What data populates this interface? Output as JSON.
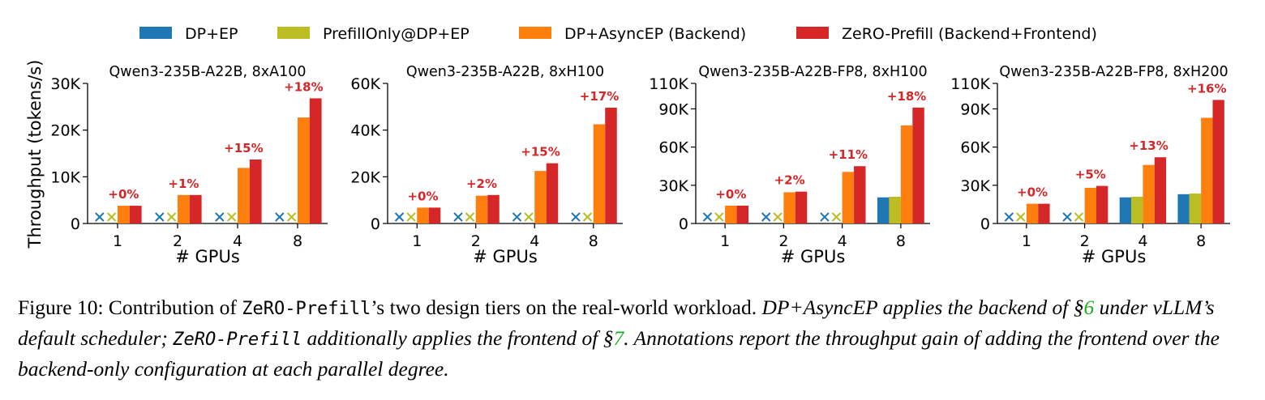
{
  "legend": [
    {
      "label": "DP+EP",
      "color": "#1f77b4",
      "key": "dp_ep"
    },
    {
      "label": "PrefillOnly@DP+EP",
      "color": "#bcbd22",
      "key": "prefill_only"
    },
    {
      "label": "DP+AsyncEP (Backend)",
      "color": "#ff7f0e",
      "key": "async_ep"
    },
    {
      "label": "ZeRO-Prefill (Backend+Frontend)",
      "color": "#d62728",
      "key": "zero_prefill"
    }
  ],
  "caption": {
    "prefix": "Figure 10: Contribution of ",
    "system_name": "ZeRO-Prefill",
    "middle": "’s two design tiers on the real-world workload. ",
    "italic_1": "DP+AsyncEP applies the backend of §",
    "ref_1": "6",
    "italic_2": " under vLLM’s default scheduler; ",
    "system_name_2": "ZeRO-Prefill",
    "italic_3": " additionally applies the frontend of §",
    "ref_2": "7",
    "italic_4": ". Annotations report the throughput gain of adding the frontend over the backend-only configuration at each parallel degree."
  },
  "chart_data": [
    {
      "type": "bar",
      "title": "Qwen3-235B-A22B, 8xA100",
      "xlabel": "# GPUs",
      "ylabel": "Throughput (tokens/s)",
      "categories": [
        "1",
        "2",
        "4",
        "8"
      ],
      "ylim": [
        0,
        30000
      ],
      "yticks": [
        0,
        10000,
        20000,
        30000
      ],
      "ytick_labels": [
        "0",
        "10K",
        "20K",
        "30K"
      ],
      "series": [
        {
          "name": "DP+EP",
          "values": [
            null,
            null,
            null,
            null
          ]
        },
        {
          "name": "PrefillOnly@DP+EP",
          "values": [
            null,
            null,
            null,
            null
          ]
        },
        {
          "name": "DP+AsyncEP (Backend)",
          "values": [
            3800,
            6100,
            11900,
            22700
          ]
        },
        {
          "name": "ZeRO-Prefill (Backend+Frontend)",
          "values": [
            3800,
            6100,
            13700,
            26800
          ]
        }
      ],
      "annotations": [
        "+0%",
        "+1%",
        "+15%",
        "+18%"
      ]
    },
    {
      "type": "bar",
      "title": "Qwen3-235B-A22B, 8xH100",
      "xlabel": "# GPUs",
      "ylabel": "",
      "categories": [
        "1",
        "2",
        "4",
        "8"
      ],
      "ylim": [
        0,
        60000
      ],
      "yticks": [
        0,
        20000,
        40000,
        60000
      ],
      "ytick_labels": [
        "0",
        "20K",
        "40K",
        "60K"
      ],
      "series": [
        {
          "name": "DP+EP",
          "values": [
            null,
            null,
            null,
            null
          ]
        },
        {
          "name": "PrefillOnly@DP+EP",
          "values": [
            null,
            null,
            null,
            null
          ]
        },
        {
          "name": "DP+AsyncEP (Backend)",
          "values": [
            6800,
            11900,
            22500,
            42500
          ]
        },
        {
          "name": "ZeRO-Prefill (Backend+Frontend)",
          "values": [
            6800,
            12200,
            25800,
            49600
          ]
        }
      ],
      "annotations": [
        "+0%",
        "+2%",
        "+15%",
        "+17%"
      ]
    },
    {
      "type": "bar",
      "title": "Qwen3-235B-A22B-FP8, 8xH100",
      "xlabel": "# GPUs",
      "ylabel": "",
      "categories": [
        "1",
        "2",
        "4",
        "8"
      ],
      "ylim": [
        0,
        110000
      ],
      "yticks": [
        0,
        30000,
        60000,
        90000,
        110000
      ],
      "ytick_labels": [
        "0",
        "30K",
        "60K",
        "90K",
        "110K"
      ],
      "series": [
        {
          "name": "DP+EP",
          "values": [
            null,
            null,
            null,
            20500
          ]
        },
        {
          "name": "PrefillOnly@DP+EP",
          "values": [
            null,
            null,
            null,
            21000
          ]
        },
        {
          "name": "DP+AsyncEP (Backend)",
          "values": [
            14000,
            24500,
            40500,
            77000
          ]
        },
        {
          "name": "ZeRO-Prefill (Backend+Frontend)",
          "values": [
            14000,
            25000,
            45000,
            91000
          ]
        }
      ],
      "annotations": [
        "+0%",
        "+2%",
        "+11%",
        "+18%"
      ]
    },
    {
      "type": "bar",
      "title": "Qwen3-235B-A22B-FP8, 8xH200",
      "xlabel": "# GPUs",
      "ylabel": "",
      "categories": [
        "1",
        "2",
        "4",
        "8"
      ],
      "ylim": [
        0,
        110000
      ],
      "yticks": [
        0,
        30000,
        60000,
        90000,
        110000
      ],
      "ytick_labels": [
        "0",
        "30K",
        "60K",
        "90K",
        "110K"
      ],
      "series": [
        {
          "name": "DP+EP",
          "values": [
            null,
            null,
            20500,
            23000
          ]
        },
        {
          "name": "PrefillOnly@DP+EP",
          "values": [
            null,
            null,
            21000,
            23500
          ]
        },
        {
          "name": "DP+AsyncEP (Backend)",
          "values": [
            15500,
            28000,
            46000,
            83000
          ]
        },
        {
          "name": "ZeRO-Prefill (Backend+Frontend)",
          "values": [
            15500,
            29500,
            52000,
            97000
          ]
        }
      ],
      "annotations": [
        "+0%",
        "+5%",
        "+13%",
        "+16%"
      ]
    }
  ]
}
